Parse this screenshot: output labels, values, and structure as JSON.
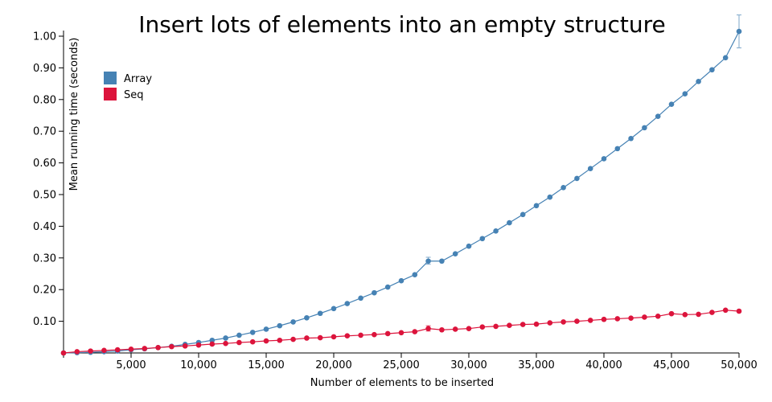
{
  "chart_data": {
    "type": "line",
    "title": "Insert lots of elements into an empty structure",
    "xlabel": "Number of elements to be inserted",
    "ylabel": "Mean running time (seconds)",
    "xlim": [
      0,
      50000
    ],
    "ylim": [
      0,
      1.0
    ],
    "x_ticks": [
      5000,
      10000,
      15000,
      20000,
      25000,
      30000,
      35000,
      40000,
      45000,
      50000
    ],
    "x_tick_labels": [
      "5,000",
      "10,000",
      "15,000",
      "20,000",
      "25,000",
      "30,000",
      "35,000",
      "40,000",
      "45,000",
      "50,000"
    ],
    "y_ticks": [
      0.1,
      0.2,
      0.3,
      0.4,
      0.5,
      0.6,
      0.7,
      0.8,
      0.9,
      1.0
    ],
    "y_tick_labels": [
      "0.10",
      "0.20",
      "0.30",
      "0.40",
      "0.50",
      "0.60",
      "0.70",
      "0.80",
      "0.90",
      "1.00"
    ],
    "legend_position": "top-left",
    "x": [
      0,
      1000,
      2000,
      3000,
      4000,
      5000,
      6000,
      7000,
      8000,
      9000,
      10000,
      11000,
      12000,
      13000,
      14000,
      15000,
      16000,
      17000,
      18000,
      19000,
      20000,
      21000,
      22000,
      23000,
      24000,
      25000,
      26000,
      27000,
      28000,
      29000,
      30000,
      31000,
      32000,
      33000,
      34000,
      35000,
      36000,
      37000,
      38000,
      39000,
      40000,
      41000,
      42000,
      43000,
      44000,
      45000,
      46000,
      47000,
      48000,
      49000,
      50000
    ],
    "series": [
      {
        "name": "Array",
        "color": "#4682b4",
        "values": [
          0.0,
          0.001,
          0.002,
          0.004,
          0.006,
          0.01,
          0.013,
          0.017,
          0.021,
          0.027,
          0.033,
          0.04,
          0.047,
          0.056,
          0.065,
          0.075,
          0.086,
          0.098,
          0.111,
          0.125,
          0.14,
          0.156,
          0.173,
          0.19,
          0.208,
          0.228,
          0.247,
          0.29,
          0.29,
          0.313,
          0.337,
          0.361,
          0.385,
          0.411,
          0.437,
          0.465,
          0.492,
          0.522,
          0.551,
          0.582,
          0.613,
          0.645,
          0.677,
          0.711,
          0.747,
          0.785,
          0.818,
          0.857,
          0.894,
          0.932,
          1.015
        ],
        "error_bars": [
          {
            "x": 27000,
            "low": 0.28,
            "high": 0.302
          },
          {
            "x": 50000,
            "low": 0.963,
            "high": 1.067
          }
        ]
      },
      {
        "name": "Seq",
        "color": "#dc143c",
        "values": [
          0.0,
          0.004,
          0.006,
          0.008,
          0.01,
          0.012,
          0.014,
          0.017,
          0.02,
          0.022,
          0.025,
          0.028,
          0.03,
          0.033,
          0.035,
          0.038,
          0.04,
          0.043,
          0.047,
          0.048,
          0.051,
          0.054,
          0.056,
          0.058,
          0.061,
          0.064,
          0.067,
          0.077,
          0.073,
          0.075,
          0.077,
          0.082,
          0.084,
          0.087,
          0.09,
          0.091,
          0.095,
          0.098,
          0.1,
          0.103,
          0.106,
          0.108,
          0.11,
          0.113,
          0.116,
          0.124,
          0.121,
          0.122,
          0.128,
          0.135,
          0.132
        ],
        "error_bars": [
          {
            "x": 27000,
            "low": 0.069,
            "high": 0.086
          }
        ]
      }
    ]
  }
}
